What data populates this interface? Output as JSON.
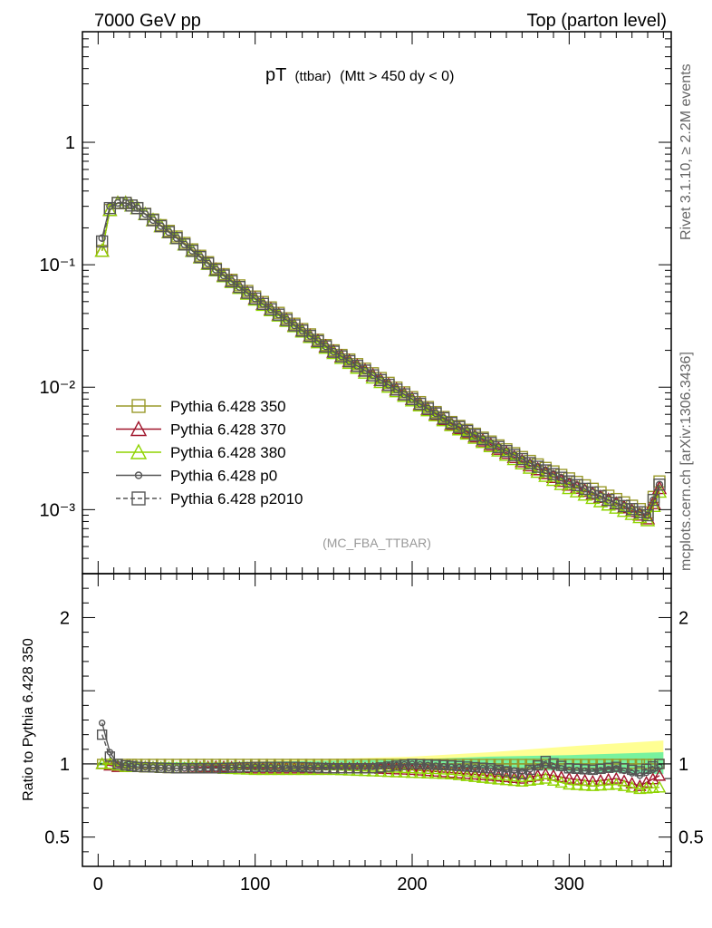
{
  "header": {
    "left": "7000 GeV pp",
    "right": "Top (parton level)"
  },
  "side_labels": {
    "rivet": "Rivet 3.1.10, ≥ 2.2M events",
    "mcplots": "mcplots.cern.ch [arXiv:1306.3436]"
  },
  "chart_data": [
    {
      "type": "line",
      "panel": "main",
      "title_main": "pT",
      "title_sub": "(ttbar)",
      "title_rest": "(Mtt > 450 dy < 0)",
      "analysis": "(MC_FBA_TTBAR)",
      "xlim": [
        -10,
        365
      ],
      "ylim": [
        0.0003,
        8
      ],
      "yscale": "log",
      "ytick_labels": [
        "1",
        "10⁻¹",
        "10⁻²",
        "10⁻³"
      ],
      "ytick_values": [
        1,
        0.1,
        0.01,
        0.001
      ],
      "x": [
        2.5,
        7.5,
        12.5,
        17.5,
        25,
        50,
        75,
        100,
        125,
        150,
        175,
        200,
        225,
        250,
        275,
        300,
        325,
        350,
        357.5
      ],
      "series": [
        {
          "name": "Pythia 6.428 350",
          "color": "#9a9a2a",
          "marker": "square-open",
          "values": [
            0.13,
            0.28,
            0.32,
            0.32,
            0.29,
            0.17,
            0.093,
            0.055,
            0.033,
            0.02,
            0.013,
            0.0083,
            0.0052,
            0.0036,
            0.0025,
            0.0018,
            0.0013,
            0.00095,
            0.0017
          ]
        },
        {
          "name": "Pythia 6.428 370",
          "color": "#a0162c",
          "marker": "triangle-open",
          "values": [
            0.13,
            0.28,
            0.32,
            0.32,
            0.29,
            0.165,
            0.091,
            0.053,
            0.032,
            0.0195,
            0.0125,
            0.008,
            0.005,
            0.0034,
            0.0023,
            0.0016,
            0.0012,
            0.00085,
            0.0015
          ]
        },
        {
          "name": "Pythia 6.428 380",
          "color": "#8fd400",
          "marker": "triangle-open",
          "values": [
            0.13,
            0.28,
            0.32,
            0.32,
            0.29,
            0.165,
            0.09,
            0.052,
            0.0315,
            0.019,
            0.012,
            0.0078,
            0.0049,
            0.0033,
            0.0022,
            0.0015,
            0.0011,
            0.00082,
            0.0014
          ]
        },
        {
          "name": "Pythia 6.428 p0",
          "color": "#555555",
          "marker": "circle-open",
          "values": [
            0.165,
            0.3,
            0.32,
            0.32,
            0.29,
            0.165,
            0.091,
            0.053,
            0.032,
            0.0195,
            0.0125,
            0.008,
            0.0051,
            0.0035,
            0.0024,
            0.0017,
            0.0012,
            0.0009,
            0.0016
          ]
        },
        {
          "name": "Pythia 6.428 p2010",
          "color": "#555555",
          "marker": "square-open",
          "dashed": true,
          "values": [
            0.155,
            0.29,
            0.32,
            0.32,
            0.29,
            0.165,
            0.091,
            0.053,
            0.032,
            0.0195,
            0.0125,
            0.008,
            0.0051,
            0.0035,
            0.0024,
            0.0017,
            0.0012,
            0.0009,
            0.0016
          ]
        }
      ]
    },
    {
      "type": "line",
      "panel": "ratio",
      "ylabel": "Ratio to Pythia 6.428 350",
      "xlim": [
        -10,
        365
      ],
      "ylim": [
        0.3,
        2.3
      ],
      "xtick_labels": [
        "0",
        "100",
        "200",
        "300"
      ],
      "xtick_values": [
        0,
        100,
        200,
        300
      ],
      "ytick_labels": [
        "0.5",
        "1",
        "2"
      ],
      "ytick_values": [
        0.5,
        1,
        2
      ],
      "band": {
        "color": "#ffff80",
        "x": [
          0,
          100,
          200,
          250,
          300,
          360
        ],
        "low": [
          0.99,
          0.985,
          0.98,
          0.97,
          0.96,
          0.95
        ],
        "high": [
          1.01,
          1.02,
          1.05,
          1.08,
          1.12,
          1.16
        ]
      },
      "band2": {
        "color": "#60f0a0",
        "x": [
          0,
          100,
          200,
          250,
          300,
          360
        ],
        "low": [
          0.99,
          0.985,
          0.98,
          0.97,
          0.95,
          0.93
        ],
        "high": [
          1.01,
          1.015,
          1.03,
          1.05,
          1.06,
          1.08
        ]
      },
      "x": [
        2.5,
        7.5,
        12.5,
        17.5,
        25,
        50,
        75,
        100,
        125,
        150,
        175,
        200,
        225,
        250,
        270,
        285,
        300,
        315,
        330,
        345,
        357.5
      ],
      "series": [
        {
          "name": "Pythia 6.428 350",
          "color": "#9a9a2a",
          "marker": "square-open",
          "values": [
            1,
            1,
            1,
            1,
            1,
            1,
            1,
            1,
            1,
            1,
            1,
            1,
            1,
            1,
            1,
            1,
            1,
            1,
            1,
            1,
            1
          ]
        },
        {
          "name": "Pythia 6.428 370",
          "color": "#a0162c",
          "marker": "triangle-open",
          "values": [
            1.0,
            0.99,
            0.98,
            0.98,
            0.98,
            0.97,
            0.98,
            0.97,
            0.97,
            0.97,
            0.97,
            0.96,
            0.94,
            0.92,
            0.9,
            0.93,
            0.9,
            0.88,
            0.9,
            0.85,
            0.92
          ]
        },
        {
          "name": "Pythia 6.428 380",
          "color": "#8fd400",
          "marker": "triangle-open",
          "values": [
            1.0,
            1.0,
            0.99,
            0.98,
            0.98,
            0.97,
            0.97,
            0.96,
            0.96,
            0.96,
            0.95,
            0.94,
            0.93,
            0.9,
            0.88,
            0.9,
            0.86,
            0.85,
            0.86,
            0.83,
            0.84
          ]
        },
        {
          "name": "Pythia 6.428 p0",
          "color": "#555555",
          "marker": "circle-open",
          "values": [
            1.28,
            1.08,
            1.0,
            0.99,
            0.98,
            0.97,
            0.97,
            0.98,
            0.97,
            0.98,
            0.98,
            1.0,
            0.98,
            0.97,
            0.95,
            0.99,
            0.96,
            0.95,
            0.97,
            0.92,
            0.98
          ]
        },
        {
          "name": "Pythia 6.428 p2010",
          "color": "#555555",
          "marker": "square-open",
          "dashed": true,
          "values": [
            1.2,
            1.05,
            1.0,
            0.99,
            0.98,
            0.97,
            0.97,
            0.98,
            0.98,
            0.97,
            0.97,
            1.0,
            0.99,
            0.97,
            0.93,
            1.02,
            0.97,
            0.96,
            0.98,
            0.95,
            1.0
          ]
        }
      ]
    }
  ]
}
